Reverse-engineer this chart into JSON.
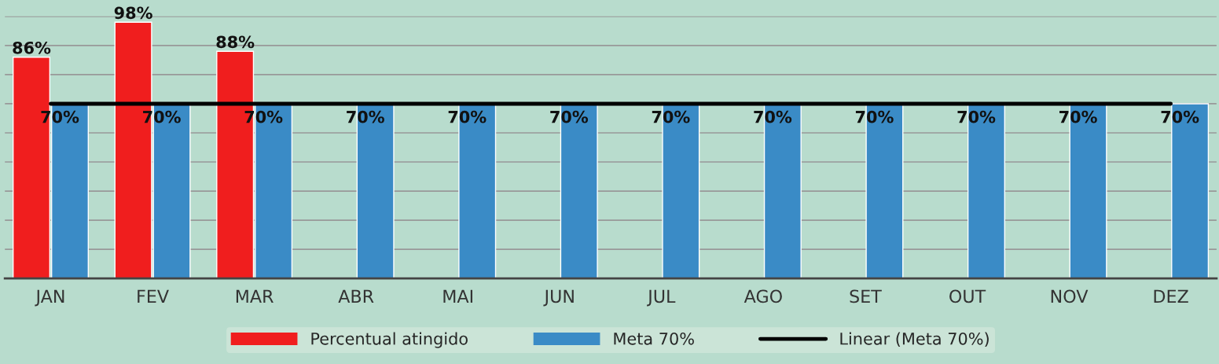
{
  "chart_data": {
    "type": "bar",
    "categories": [
      "JAN",
      "FEV",
      "MAR",
      "ABR",
      "MAI",
      "JUN",
      "JUL",
      "AGO",
      "SET",
      "OUT",
      "NOV",
      "DEZ"
    ],
    "series": [
      {
        "name": "Percentual atingido",
        "color": "#f01e1e",
        "values": [
          86,
          98,
          88,
          null,
          null,
          null,
          null,
          null,
          null,
          null,
          null,
          null
        ],
        "value_labels": [
          "86%",
          "98%",
          "88%",
          null,
          null,
          null,
          null,
          null,
          null,
          null,
          null,
          null
        ]
      },
      {
        "name": "Meta 70%",
        "color": "#3a8bc6",
        "values": [
          70,
          70,
          70,
          70,
          70,
          70,
          70,
          70,
          70,
          70,
          70,
          70
        ],
        "value_labels": [
          "70%",
          "70%",
          "70%",
          "70%",
          "70%",
          "70%",
          "70%",
          "70%",
          "70%",
          "70%",
          "70%",
          "70%"
        ]
      },
      {
        "name": "Linear (Meta 70%)",
        "type": "line",
        "color": "#000000",
        "values": [
          70,
          70,
          70,
          70,
          70,
          70,
          70,
          70,
          70,
          70,
          70,
          70
        ]
      }
    ],
    "ylim": [
      10,
      100
    ],
    "yticks": [
      {
        "value": 20,
        "label": null
      },
      {
        "value": 30,
        "label": null
      },
      {
        "value": 40,
        "label": null
      },
      {
        "value": 50,
        "label": null
      },
      {
        "value": 60,
        "label": null
      },
      {
        "value": 70,
        "label": null
      },
      {
        "value": 80,
        "label": null
      },
      {
        "value": 90,
        "label": null
      },
      {
        "value": 100,
        "label": null
      }
    ],
    "tick_labels": "x",
    "grid": "y",
    "legend": "bottom"
  }
}
